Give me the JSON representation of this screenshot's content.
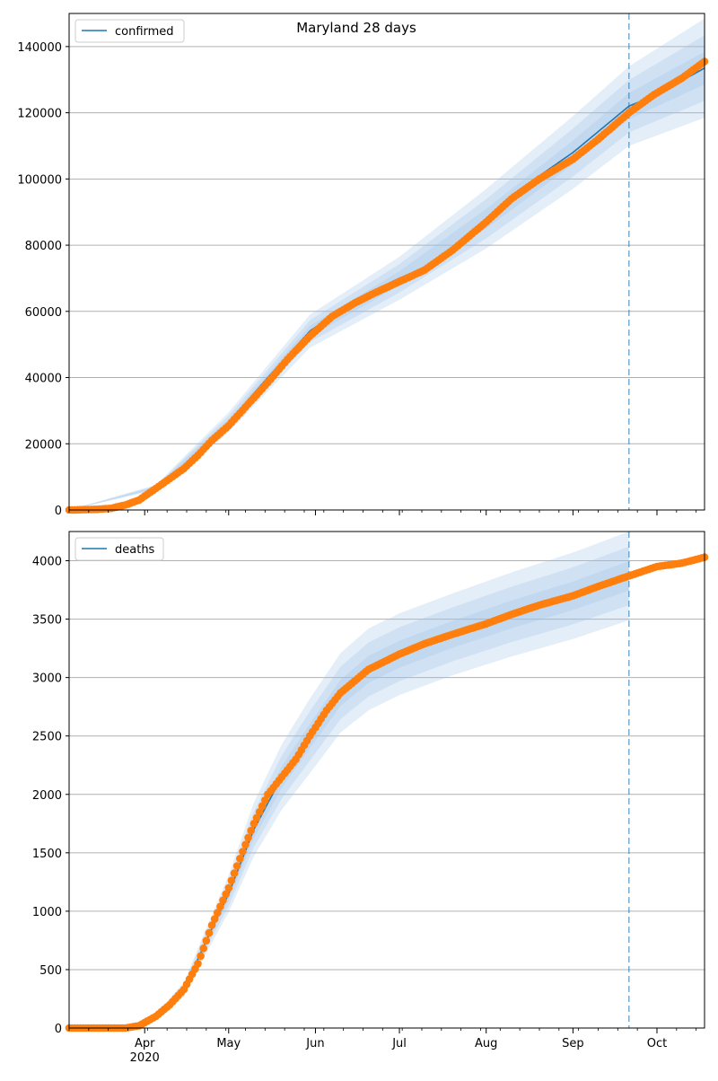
{
  "title": "Maryland 28 days",
  "colors": {
    "line": "#1f77b4",
    "points": "#ff7f0e",
    "band": "#9ec2e6",
    "grid": "#b0b0b0",
    "forecast_line": "#1f77b4"
  },
  "x_axis": {
    "month_labels": [
      "Apr",
      "May",
      "Jun",
      "Jul",
      "Aug",
      "Sep",
      "Oct"
    ],
    "year_label": "2020",
    "range": [
      "2020-03-05",
      "2020-10-18"
    ]
  },
  "chart_data": [
    {
      "type": "line",
      "subplot": "top",
      "legend": "confirmed",
      "legend_position": "upper-left",
      "title": "Maryland 28 days",
      "ylim": [
        0,
        150000
      ],
      "yticks": [
        0,
        20000,
        40000,
        60000,
        80000,
        100000,
        120000,
        140000
      ],
      "grid": "horizontal",
      "forecast_start": "2020-09-21",
      "observed": {
        "x": [
          "2020-03-05",
          "2020-03-10",
          "2020-03-15",
          "2020-03-20",
          "2020-03-25",
          "2020-03-30",
          "2020-04-05",
          "2020-04-10",
          "2020-04-15",
          "2020-04-20",
          "2020-04-25",
          "2020-05-01",
          "2020-05-08",
          "2020-05-15",
          "2020-05-22",
          "2020-05-30",
          "2020-06-07",
          "2020-06-15",
          "2020-06-22",
          "2020-07-01",
          "2020-07-10",
          "2020-07-20",
          "2020-08-01",
          "2020-08-10",
          "2020-08-20",
          "2020-09-01",
          "2020-09-10",
          "2020-09-21",
          "2020-09-30",
          "2020-10-10",
          "2020-10-18"
        ],
        "y": [
          0,
          100,
          200,
          500,
          1500,
          3000,
          6500,
          9500,
          12500,
          16500,
          21000,
          25500,
          32000,
          38500,
          45500,
          52500,
          58500,
          62500,
          65500,
          69000,
          72500,
          78500,
          87000,
          94000,
          100000,
          106000,
          112000,
          120000,
          125500,
          130500,
          135500
        ]
      },
      "model": {
        "x": [
          "2020-03-05",
          "2020-03-25",
          "2020-04-05",
          "2020-04-15",
          "2020-04-25",
          "2020-05-01",
          "2020-05-15",
          "2020-05-30",
          "2020-06-15",
          "2020-07-01",
          "2020-07-15",
          "2020-08-01",
          "2020-08-15",
          "2020-09-01",
          "2020-09-21",
          "2020-10-01",
          "2020-10-18"
        ],
        "y": [
          0,
          1600,
          6800,
          13000,
          21500,
          26500,
          40000,
          54000,
          63500,
          70000,
          75000,
          88000,
          98000,
          108000,
          122000,
          125500,
          133500
        ]
      },
      "band": {
        "x": [
          "2020-03-05",
          "2020-04-05",
          "2020-05-01",
          "2020-05-30",
          "2020-07-01",
          "2020-08-01",
          "2020-09-01",
          "2020-09-21",
          "2020-10-18"
        ],
        "center": [
          0,
          6800,
          26500,
          54000,
          70000,
          88000,
          108000,
          122000,
          133500
        ],
        "half_width": [
          0,
          800,
          3000,
          5000,
          6500,
          9000,
          11000,
          12000,
          15000
        ]
      }
    },
    {
      "type": "line",
      "subplot": "bottom",
      "legend": "deaths",
      "legend_position": "upper-left",
      "ylim": [
        0,
        4250
      ],
      "yticks": [
        0,
        500,
        1000,
        1500,
        2000,
        2500,
        3000,
        3500,
        4000
      ],
      "grid": "horizontal",
      "forecast_start": "2020-09-21",
      "observed": {
        "x": [
          "2020-03-05",
          "2020-03-25",
          "2020-03-30",
          "2020-04-05",
          "2020-04-10",
          "2020-04-15",
          "2020-04-20",
          "2020-04-25",
          "2020-05-01",
          "2020-05-05",
          "2020-05-10",
          "2020-05-15",
          "2020-05-20",
          "2020-05-25",
          "2020-05-30",
          "2020-06-05",
          "2020-06-10",
          "2020-06-20",
          "2020-07-01",
          "2020-07-10",
          "2020-07-20",
          "2020-08-01",
          "2020-08-10",
          "2020-08-20",
          "2020-09-01",
          "2020-09-10",
          "2020-09-21",
          "2020-10-01",
          "2020-10-10",
          "2020-10-18"
        ],
        "y": [
          0,
          0,
          20,
          100,
          200,
          330,
          550,
          880,
          1200,
          1450,
          1750,
          2000,
          2150,
          2300,
          2500,
          2720,
          2870,
          3070,
          3200,
          3290,
          3370,
          3460,
          3540,
          3620,
          3700,
          3780,
          3870,
          3950,
          3980,
          4030
        ]
      },
      "model": {
        "x": [
          "2020-03-05",
          "2020-03-25",
          "2020-04-05",
          "2020-04-15",
          "2020-04-25",
          "2020-05-01",
          "2020-05-10",
          "2020-05-20",
          "2020-05-30",
          "2020-06-10",
          "2020-06-20",
          "2020-07-01",
          "2020-07-20",
          "2020-08-10",
          "2020-09-01",
          "2020-09-21"
        ],
        "y": [
          0,
          0,
          100,
          330,
          850,
          1150,
          1700,
          2150,
          2500,
          2870,
          3070,
          3200,
          3370,
          3540,
          3700,
          3870
        ]
      },
      "band": {
        "x": [
          "2020-03-05",
          "2020-03-25",
          "2020-04-05",
          "2020-04-15",
          "2020-04-25",
          "2020-05-01",
          "2020-05-10",
          "2020-05-20",
          "2020-05-30",
          "2020-06-10",
          "2020-06-20",
          "2020-07-01",
          "2020-07-20",
          "2020-08-10",
          "2020-09-01",
          "2020-09-21"
        ],
        "center": [
          0,
          0,
          100,
          330,
          850,
          1150,
          1700,
          2150,
          2500,
          2870,
          3070,
          3200,
          3370,
          3540,
          3700,
          3870
        ],
        "half_width": [
          0,
          0,
          20,
          60,
          120,
          160,
          230,
          280,
          320,
          340,
          350,
          350,
          350,
          360,
          370,
          380
        ]
      }
    }
  ]
}
